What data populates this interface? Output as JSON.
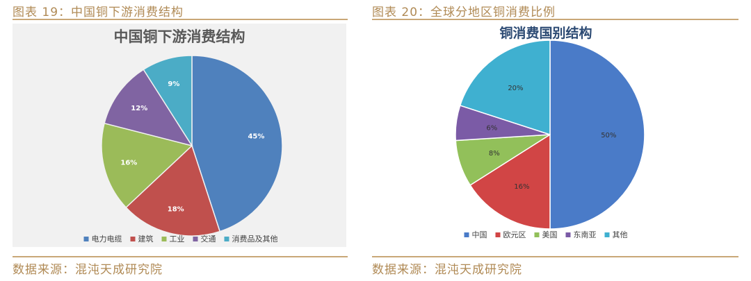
{
  "captions": {
    "left": "图表 19：中国铜下游消费结构",
    "right": "图表 20：全球分地区铜消费比例"
  },
  "sources": {
    "left": "数据来源：混沌天成研究院",
    "right": "数据来源：混沌天成研究院"
  },
  "chart_data": [
    {
      "type": "pie",
      "title": "中国铜下游消费结构",
      "categories": [
        "电力电缆",
        "建筑",
        "工业",
        "交通",
        "消费品及其他"
      ],
      "values": [
        45,
        18,
        16,
        12,
        9
      ],
      "labels": [
        "45%",
        "18%",
        "16%",
        "12%",
        "9%"
      ],
      "colors": [
        "#4f81bd",
        "#c0504d",
        "#9bbb59",
        "#8064a2",
        "#4bacc6"
      ],
      "legend": "bottom"
    },
    {
      "type": "pie",
      "title": "铜消费国别结构",
      "categories": [
        "中国",
        "欧元区",
        "美国",
        "东南亚",
        "其他"
      ],
      "values": [
        50,
        16,
        8,
        6,
        20
      ],
      "labels": [
        "50%",
        "16%",
        "8%",
        "6%",
        "20%"
      ],
      "colors": [
        "#4a7bc8",
        "#d14545",
        "#92c05a",
        "#7b5ba6",
        "#3fb0d0"
      ],
      "legend": "bottom"
    }
  ]
}
